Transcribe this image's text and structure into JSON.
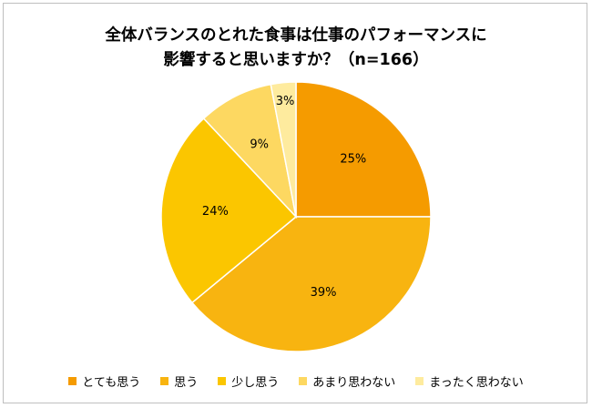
{
  "chart_data": {
    "type": "pie",
    "title_lines": [
      "全体バランスのとれた食事は仕事のパフォーマンスに",
      "影響すると思いますか？（n=166）"
    ],
    "categories": [
      "とても思う",
      "思う",
      "少し思う",
      "あまり思わない",
      "まったく思わない"
    ],
    "values": [
      25,
      39,
      24,
      9,
      3
    ],
    "labels": [
      "25%",
      "39%",
      "24%",
      "9%",
      "3%"
    ],
    "colors": [
      "#F59B00",
      "#F8B410",
      "#FBC600",
      "#FDD861",
      "#FEEB9E"
    ],
    "legend_position": "bottom"
  }
}
